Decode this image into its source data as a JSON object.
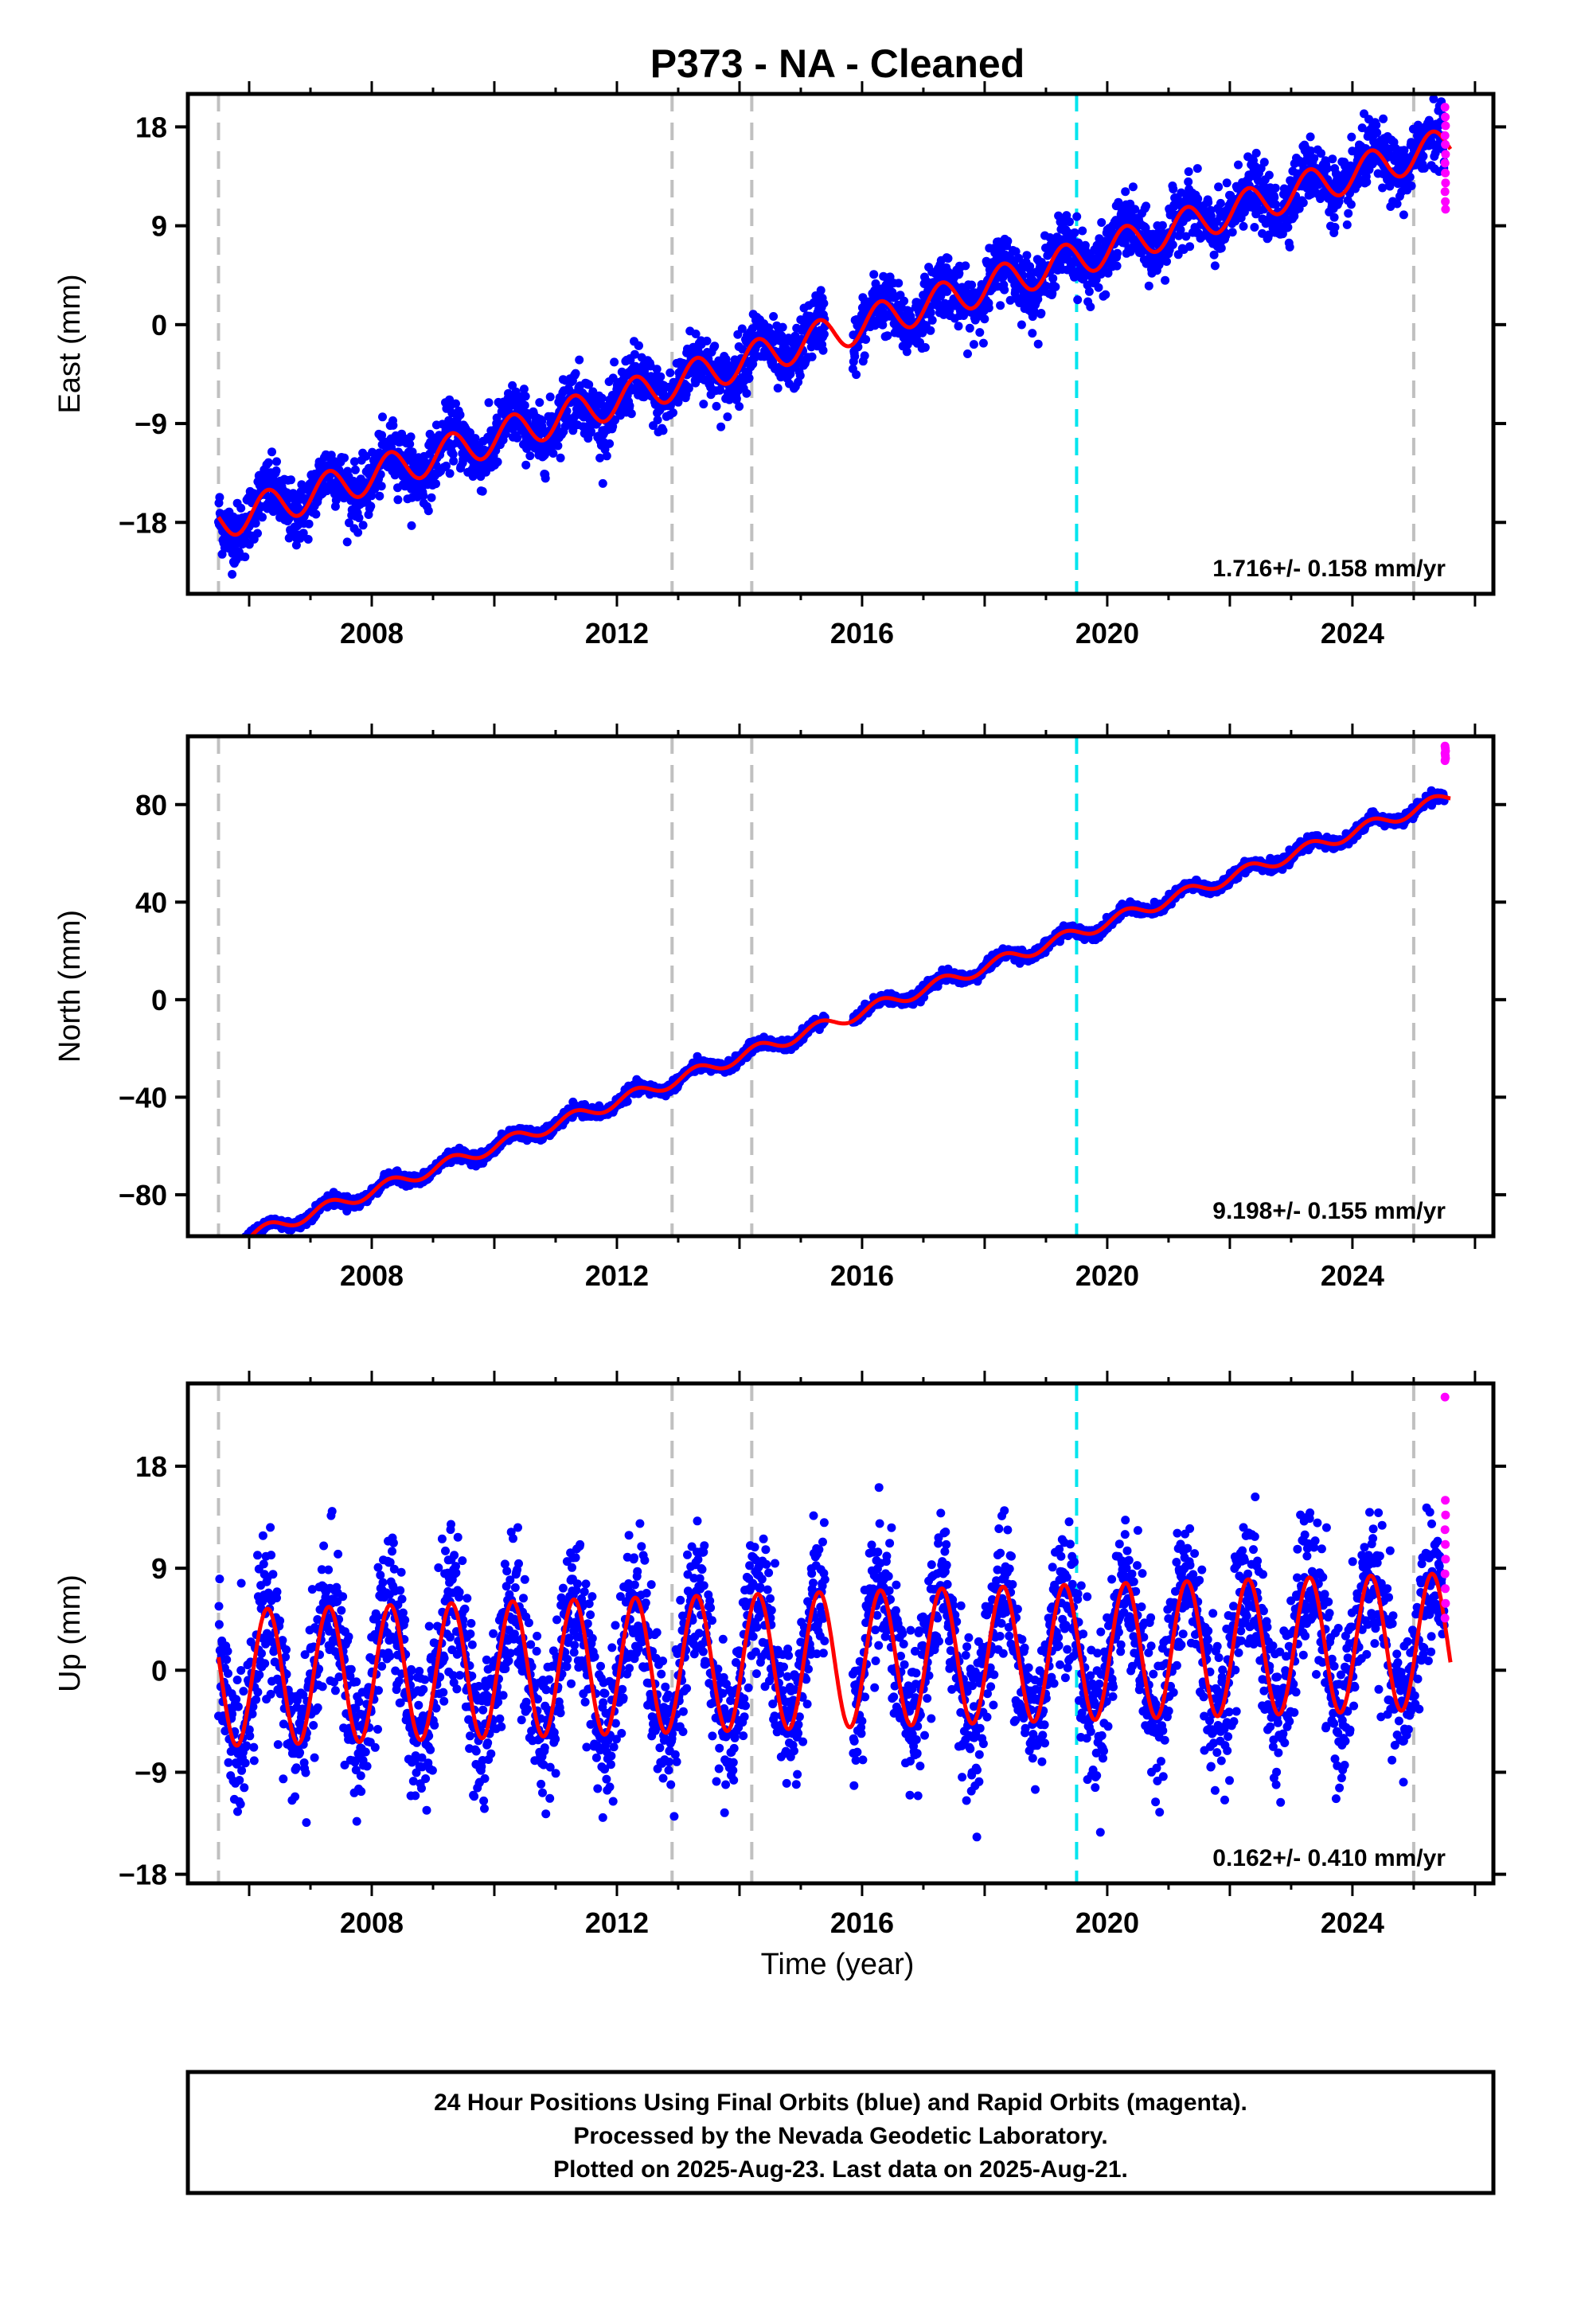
{
  "chart_data": [
    {
      "type": "scatter",
      "title": "P373  - NA - Cleaned",
      "ylabel": "East (mm)",
      "xlabel": "",
      "xlim": [
        2005.0,
        2026.3
      ],
      "ylim": [
        -24.5,
        21.0
      ],
      "yticks": [
        -18,
        -9,
        0,
        9,
        18
      ],
      "xticks": [
        2008,
        2012,
        2016,
        2020,
        2024
      ],
      "grid": false,
      "rate_label": "1.716+/- 0.158 mm/yr",
      "rate": 1.716,
      "offset": 0.0,
      "amplitude": 1.6,
      "noise": 1.4,
      "data_start": 2005.5,
      "rapid_start": 2025.5,
      "rapid_values": [
        19.8,
        18.9,
        18.1,
        17.2,
        16.4,
        15.5,
        14.7,
        13.8,
        12.9,
        12.1,
        11.2,
        10.5
      ],
      "equipment_changes": [
        2005.5,
        2012.9,
        2014.2,
        2025.0
      ],
      "earthquake": 2019.5,
      "series": [
        {
          "name": "Final Orbits",
          "color": "#0000ff"
        },
        {
          "name": "Rapid Orbits",
          "color": "#ff00ff"
        },
        {
          "name": "Model",
          "color": "#ff0000"
        }
      ]
    },
    {
      "type": "scatter",
      "title": "",
      "ylabel": "North (mm)",
      "xlabel": "",
      "xlim": [
        2005.0,
        2026.3
      ],
      "ylim": [
        -97.0,
        108.0
      ],
      "yticks": [
        -80,
        -40,
        0,
        40,
        80
      ],
      "xticks": [
        2008,
        2012,
        2016,
        2020,
        2024
      ],
      "grid": false,
      "rate_label": "9.198+/- 0.155 mm/yr",
      "rate": 9.198,
      "offset": -5.0,
      "amplitude": 2.5,
      "noise": 1.1,
      "data_start": 2005.5,
      "rapid_start": 2025.5,
      "rapid_values": [
        104.0,
        103.0,
        102.0,
        101.0,
        100.0,
        99.0,
        98.0
      ],
      "equipment_changes": [
        2005.5,
        2012.9,
        2014.2,
        2025.0
      ],
      "earthquake": 2019.5,
      "series": [
        {
          "name": "Final Orbits",
          "color": "#0000ff"
        },
        {
          "name": "Rapid Orbits",
          "color": "#ff00ff"
        },
        {
          "name": "Model",
          "color": "#ff0000"
        }
      ]
    },
    {
      "type": "scatter",
      "title": "",
      "ylabel": "Up (mm)",
      "xlabel": "Time (year)",
      "xlim": [
        2005.0,
        2026.3
      ],
      "ylim": [
        -18.8,
        25.3
      ],
      "yticks": [
        -18,
        -9,
        0,
        9,
        18
      ],
      "xticks": [
        2008,
        2012,
        2016,
        2020,
        2024
      ],
      "grid": false,
      "rate_label": "0.162+/- 0.410 mm/yr",
      "rate": 0.162,
      "offset": 1.0,
      "amplitude": 6.0,
      "noise": 3.2,
      "data_start": 2005.5,
      "rapid_start": 2025.5,
      "rapid_values": [
        24.1,
        15.0,
        13.7,
        12.4,
        11.1,
        9.8,
        8.5,
        7.2,
        5.9,
        4.6
      ],
      "equipment_changes": [
        2005.5,
        2012.9,
        2014.2,
        2025.0
      ],
      "earthquake": 2019.5,
      "series": [
        {
          "name": "Final Orbits",
          "color": "#0000ff"
        },
        {
          "name": "Rapid Orbits",
          "color": "#ff00ff"
        },
        {
          "name": "Model",
          "color": "#ff0000"
        }
      ]
    }
  ],
  "caption": {
    "line1": "24 Hour Positions Using Final Orbits (blue) and Rapid Orbits (magenta).",
    "line2": "Processed by the Nevada Geodetic Laboratory.",
    "line3": "Plotted on 2025-Aug-23. Last data on 2025-Aug-21."
  },
  "colors": {
    "final": "#0000ff",
    "rapid": "#ff00ff",
    "model": "#ff0000",
    "equipment_line": "#c0c0c0",
    "earthquake_line": "#00e5ee"
  }
}
